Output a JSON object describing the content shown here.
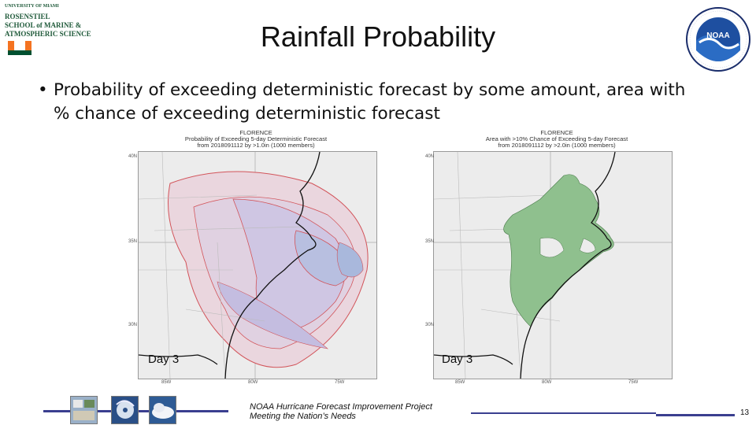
{
  "slide": {
    "title": "Rainfall Probability",
    "bullet": "Probability of exceeding deterministic forecast by some amount, area with % chance of exceeding deterministic forecast",
    "bullet_symbol": "•",
    "page_number": "13"
  },
  "logos": {
    "left": {
      "lines": [
        "UNIVERSITY OF MIAMI",
        "ROSENSTIEL",
        "SCHOOL of MARINE &",
        "ATMOSPHERIC SCIENCE"
      ],
      "monogram": "U"
    },
    "right": {
      "name": "NOAA",
      "ring_text": "NATIONAL OCEANIC AND ATMOSPHERIC ADMINISTRATION · U.S. DEPARTMENT OF COMMERCE"
    }
  },
  "maps": [
    {
      "title": [
        "FLORENCE",
        "Probability of Exceeding 5-day Deterministic Forecast",
        "from 2018091112 by >1.0in (1000 members)"
      ],
      "day_label": "Day 3",
      "lat_ticks": [
        "40N",
        "35N",
        "30N"
      ],
      "lon_ticks": [
        "85W",
        "80W",
        "75W"
      ],
      "colors": {
        "fill": "#c9c3e0",
        "core": "#a9b8dc",
        "contour": "#d2545a"
      }
    },
    {
      "title": [
        "FLORENCE",
        "Area with >10% Chance of Exceeding 5-day Forecast",
        "from 2018091112 by >2.0in (1000 members)"
      ],
      "day_label": "Day 3",
      "lat_ticks": [
        "40N",
        "35N",
        "30N"
      ],
      "lon_ticks": [
        "85W",
        "80W",
        "75W"
      ],
      "colors": {
        "fill": "#8fc08e"
      }
    }
  ],
  "footer": {
    "line1": "NOAA Hurricane Forecast Improvement Project",
    "line2": "Meeting the Nation’s Needs",
    "bar_color": "#3a3f8f"
  },
  "thumbnails": [
    "hfip-logo-thumb",
    "hurricane-satellite-thumb",
    "storm-cloud-thumb"
  ]
}
